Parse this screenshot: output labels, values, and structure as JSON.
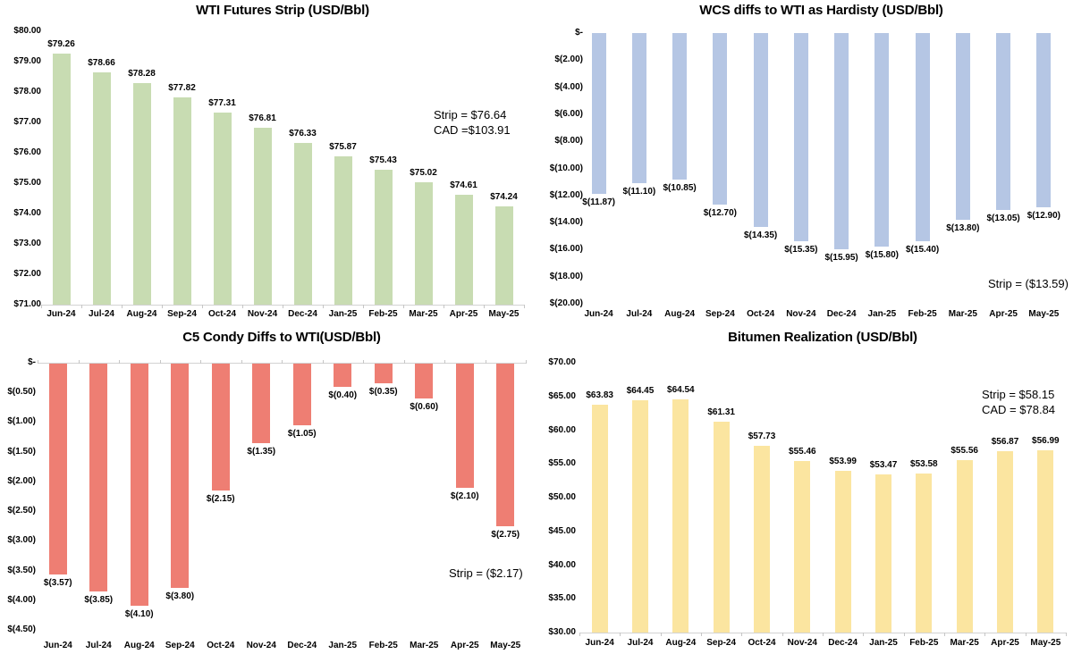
{
  "page": {
    "background": "#ffffff",
    "text_color": "#000000"
  },
  "chart_data": [
    {
      "type": "bar",
      "title": "WTI Futures Strip (USD/Bbl)",
      "categories": [
        "Jun-24",
        "Jul-24",
        "Aug-24",
        "Sep-24",
        "Oct-24",
        "Nov-24",
        "Dec-24",
        "Jan-25",
        "Feb-25",
        "Mar-25",
        "Apr-25",
        "May-25"
      ],
      "values": [
        79.26,
        78.66,
        78.28,
        77.82,
        77.31,
        76.81,
        76.33,
        75.87,
        75.43,
        75.02,
        74.61,
        74.24
      ],
      "labels": [
        "$79.26",
        "$78.66",
        "$78.28",
        "$77.82",
        "$77.31",
        "$76.81",
        "$76.33",
        "$75.87",
        "$75.43",
        "$75.02",
        "$74.61",
        "$74.24"
      ],
      "y_ticks": [
        "$80.00",
        "$79.00",
        "$78.00",
        "$77.00",
        "$76.00",
        "$75.00",
        "$74.00",
        "$73.00",
        "$72.00",
        "$71.00"
      ],
      "ylim": [
        71,
        80
      ],
      "ystep": 1,
      "bar_color": "#c8dcb2",
      "bar_base": "axis-min",
      "grid": false,
      "legend": "none",
      "xlabel": "",
      "ylabel": "",
      "annotations": [
        "Strip = $76.64",
        "CAD =$103.91"
      ]
    },
    {
      "type": "bar",
      "title": "WCS diffs to WTI as Hardisty (USD/Bbl)",
      "categories": [
        "Jun-24",
        "Jul-24",
        "Aug-24",
        "Sep-24",
        "Oct-24",
        "Nov-24",
        "Dec-24",
        "Jan-25",
        "Feb-25",
        "Mar-25",
        "Apr-25",
        "May-25"
      ],
      "values": [
        -11.87,
        -11.1,
        -10.85,
        -12.7,
        -14.35,
        -15.35,
        -15.95,
        -15.8,
        -15.4,
        -13.8,
        -13.05,
        -12.9
      ],
      "labels": [
        "$(11.87)",
        "$(11.10)",
        "$(10.85)",
        "$(12.70)",
        "$(14.35)",
        "$(15.35)",
        "$(15.95)",
        "$(15.80)",
        "$(15.40)",
        "$(13.80)",
        "$(13.05)",
        "$(12.90)"
      ],
      "y_ticks": [
        "$-",
        "$(2.00)",
        "$(4.00)",
        "$(6.00)",
        "$(8.00)",
        "$(10.00)",
        "$(12.00)",
        "$(14.00)",
        "$(16.00)",
        "$(18.00)",
        "$(20.00)"
      ],
      "ylim": [
        -20,
        0
      ],
      "ystep": 2,
      "bar_color": "#b5c6e4",
      "bar_base": "axis-max",
      "grid": false,
      "legend": "none",
      "xlabel": "",
      "ylabel": "",
      "annotations": [
        "Strip = ($13.59)"
      ]
    },
    {
      "type": "bar",
      "title": "C5 Condy Diffs to WTI(USD/Bbl)",
      "categories": [
        "Jun-24",
        "Jul-24",
        "Aug-24",
        "Sep-24",
        "Oct-24",
        "Nov-24",
        "Dec-24",
        "Jan-25",
        "Feb-25",
        "Mar-25",
        "Apr-25",
        "May-25"
      ],
      "values": [
        -3.57,
        -3.85,
        -4.1,
        -3.8,
        -2.15,
        -1.35,
        -1.05,
        -0.4,
        -0.35,
        -0.6,
        -2.1,
        -2.75
      ],
      "labels": [
        "$(3.57)",
        "$(3.85)",
        "$(4.10)",
        "$(3.80)",
        "$(2.15)",
        "$(1.35)",
        "$(1.05)",
        "$(0.40)",
        "$(0.35)",
        "$(0.60)",
        "$(2.10)",
        "$(2.75)"
      ],
      "y_ticks": [
        "$-",
        "$(0.50)",
        "$(1.00)",
        "$(1.50)",
        "$(2.00)",
        "$(2.50)",
        "$(3.00)",
        "$(3.50)",
        "$(4.00)",
        "$(4.50)"
      ],
      "ylim": [
        -4.5,
        0
      ],
      "ystep": 0.5,
      "bar_color": "#ee7e73",
      "bar_base": "axis-max",
      "grid": false,
      "legend": "none",
      "xlabel": "",
      "ylabel": "",
      "annotations": [
        "Strip = ($2.17)"
      ]
    },
    {
      "type": "bar",
      "title": "Bitumen Realization (USD/Bbl)",
      "categories": [
        "Jun-24",
        "Jul-24",
        "Aug-24",
        "Sep-24",
        "Oct-24",
        "Nov-24",
        "Dec-24",
        "Jan-25",
        "Feb-25",
        "Mar-25",
        "Apr-25",
        "May-25"
      ],
      "values": [
        63.83,
        64.45,
        64.54,
        61.31,
        57.73,
        55.46,
        53.99,
        53.47,
        53.58,
        55.56,
        56.87,
        56.99
      ],
      "labels": [
        "$63.83",
        "$64.45",
        "$64.54",
        "$61.31",
        "$57.73",
        "$55.46",
        "$53.99",
        "$53.47",
        "$53.58",
        "$55.56",
        "$56.87",
        "$56.99"
      ],
      "y_ticks": [
        "$70.00",
        "$65.00",
        "$60.00",
        "$55.00",
        "$50.00",
        "$45.00",
        "$40.00",
        "$35.00",
        "$30.00"
      ],
      "ylim": [
        30,
        70
      ],
      "ystep": 5,
      "bar_color": "#fbe5a0",
      "bar_base": "axis-min",
      "grid": false,
      "legend": "none",
      "xlabel": "",
      "ylabel": "",
      "annotations": [
        "Strip = $58.15",
        "CAD = $78.84"
      ]
    }
  ]
}
